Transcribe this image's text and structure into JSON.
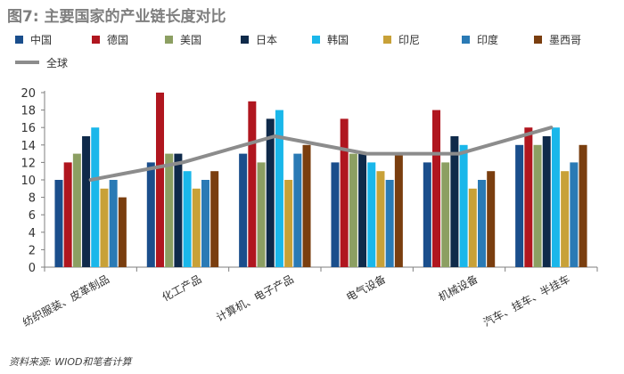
{
  "title": "图7: 主要国家的产业链长度对比",
  "source": "资料来源: WIOD和笔者计算",
  "chart_data": {
    "type": "bar",
    "categories": [
      "纺织服装、皮革制品",
      "化工产品",
      "计算机、电子产品",
      "电气设备",
      "机械设备",
      "汽车、挂车、半挂车"
    ],
    "series": [
      {
        "name": "中国",
        "color": "#1a4e8c",
        "values": [
          10,
          12,
          13,
          12,
          12,
          14
        ]
      },
      {
        "name": "德国",
        "color": "#b0161f",
        "values": [
          12,
          20,
          19,
          17,
          18,
          16
        ]
      },
      {
        "name": "美国",
        "color": "#8c9f62",
        "values": [
          13,
          13,
          12,
          13,
          12,
          14
        ]
      },
      {
        "name": "日本",
        "color": "#0f2a4a",
        "values": [
          15,
          13,
          17,
          13,
          15,
          15
        ]
      },
      {
        "name": "韩国",
        "color": "#1ab7ea",
        "values": [
          16,
          11,
          18,
          12,
          14,
          16
        ]
      },
      {
        "name": "印尼",
        "color": "#c8a138",
        "values": [
          9,
          9,
          10,
          11,
          9,
          11
        ]
      },
      {
        "name": "印度",
        "color": "#2a7ab5",
        "values": [
          10,
          10,
          13,
          10,
          10,
          12
        ]
      },
      {
        "name": "墨西哥",
        "color": "#7a3e0f",
        "values": [
          8,
          11,
          14,
          13,
          11,
          14
        ]
      }
    ],
    "line_series": {
      "name": "全球",
      "color": "#8c8c8c",
      "values": [
        10,
        12,
        15,
        13,
        13,
        16
      ]
    },
    "ylim": [
      0,
      20
    ],
    "yticks": [
      0,
      2,
      4,
      6,
      8,
      10,
      12,
      14,
      16,
      18,
      20
    ],
    "grid": false,
    "legend_position": "top"
  }
}
